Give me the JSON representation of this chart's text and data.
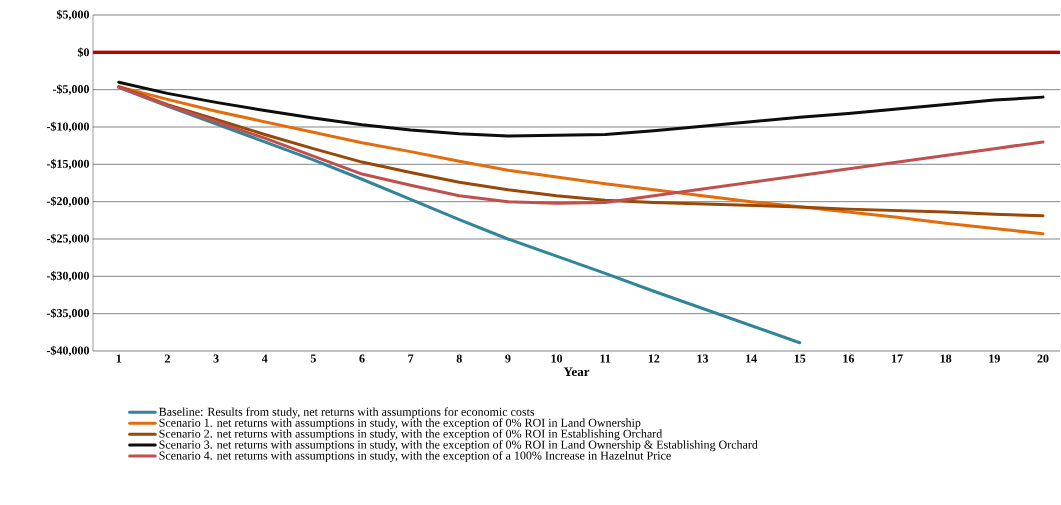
{
  "chart_data": {
    "type": "line",
    "xlabel": "Year",
    "categories": [
      "1",
      "2",
      "3",
      "4",
      "5",
      "6",
      "7",
      "8",
      "9",
      "10",
      "11",
      "12",
      "13",
      "14",
      "15",
      "16",
      "17",
      "18",
      "19",
      "20"
    ],
    "series": [
      {
        "name": "Baseline: Results from study, net returns with assumptions for economic costs",
        "color": "#31849b",
        "values": [
          -4700,
          -7200,
          -9600,
          -12000,
          -14400,
          -17000,
          -19700,
          -22400,
          -25000,
          -27300,
          -29600,
          -32000,
          -34300,
          -36600,
          -38900,
          null,
          null,
          null,
          null,
          null
        ]
      },
      {
        "name": "Scenario 1. net returns with assumptions in study, with the exception of 0% ROI in Land Ownership",
        "color": "#e46c0a",
        "values": [
          -4600,
          -6300,
          -7900,
          -9300,
          -10700,
          -12100,
          -13300,
          -14600,
          -15800,
          -16700,
          -17600,
          -18400,
          -19200,
          -20000,
          -20700,
          -21400,
          -22100,
          -22900,
          -23600,
          -24300
        ]
      },
      {
        "name": "Scenario 2. net returns with assumptions in study, with the exception of 0% ROI in Establishing Orchard",
        "color": "#984807",
        "values": [
          -4600,
          -7000,
          -9000,
          -11000,
          -12900,
          -14700,
          -16100,
          -17400,
          -18400,
          -19200,
          -19800,
          -20100,
          -20300,
          -20500,
          -20700,
          -21000,
          -21200,
          -21400,
          -21700,
          -21900
        ]
      },
      {
        "name": "Scenario 3. net returns with assumptions in study, with the exception of 0% ROI in Land Ownership & Establishing Orchard",
        "color": "#0d0d0d",
        "values": [
          -4000,
          -5500,
          -6700,
          -7800,
          -8800,
          -9700,
          -10400,
          -10900,
          -11200,
          -11100,
          -11000,
          -10500,
          -9900,
          -9300,
          -8700,
          -8200,
          -7600,
          -7000,
          -6400,
          -6000
        ]
      },
      {
        "name": "Scenario 4. net returns with assumptions in study, with the exception of a 100% Increase in Hazelnut Price",
        "color": "#c0504d",
        "values": [
          -4700,
          -7100,
          -9300,
          -11500,
          -13900,
          -16300,
          -17800,
          -19200,
          -20000,
          -20200,
          -20100,
          -19200,
          -18300,
          -17400,
          -16500,
          -15600,
          -14700,
          -13800,
          -12900,
          -12000
        ]
      }
    ],
    "ylim": [
      -40000,
      5000
    ],
    "yticks": [
      {
        "value": -40000,
        "label": "-$40,000"
      },
      {
        "value": -35000,
        "label": "-$35,000"
      },
      {
        "value": -30000,
        "label": "-$30,000"
      },
      {
        "value": -25000,
        "label": "-$25,000"
      },
      {
        "value": -20000,
        "label": "-$20,000"
      },
      {
        "value": -15000,
        "label": "-$15,000"
      },
      {
        "value": -10000,
        "label": "-$10,000"
      },
      {
        "value": -5000,
        "label": "-$5,000"
      },
      {
        "value": 0,
        "label": "$0"
      },
      {
        "value": 5000,
        "label": "$5,000"
      }
    ],
    "ref_lines": [
      {
        "axis": "y",
        "value": 0,
        "color": "#c00000"
      }
    ],
    "grid": "y",
    "legend": "bottom",
    "marker": "none",
    "line_style": "solid"
  }
}
